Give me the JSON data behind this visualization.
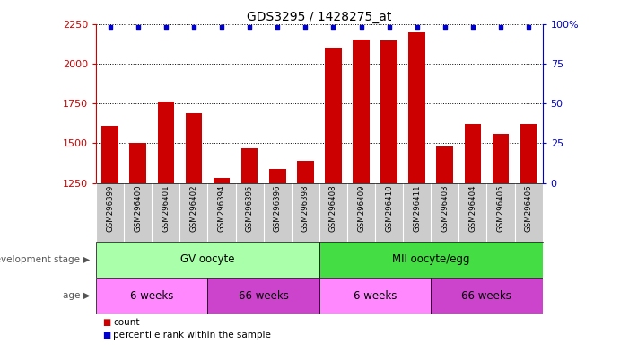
{
  "title": "GDS3295 / 1428275_at",
  "samples": [
    "GSM296399",
    "GSM296400",
    "GSM296401",
    "GSM296402",
    "GSM296394",
    "GSM296395",
    "GSM296396",
    "GSM296398",
    "GSM296408",
    "GSM296409",
    "GSM296410",
    "GSM296411",
    "GSM296403",
    "GSM296404",
    "GSM296405",
    "GSM296406"
  ],
  "counts": [
    1610,
    1500,
    1760,
    1690,
    1280,
    1470,
    1340,
    1390,
    2100,
    2155,
    2150,
    2200,
    1480,
    1620,
    1560,
    1620
  ],
  "bar_color": "#cc0000",
  "dot_color": "#0000cc",
  "ylim_left": [
    1250,
    2250
  ],
  "yticks_left": [
    1250,
    1500,
    1750,
    2000,
    2250
  ],
  "ylim_right": [
    0,
    100
  ],
  "yticks_right": [
    0,
    25,
    50,
    75,
    100
  ],
  "dev_stage_groups": [
    {
      "label": "GV oocyte",
      "start": 0,
      "end": 8,
      "color": "#aaffaa"
    },
    {
      "label": "MII oocyte/egg",
      "start": 8,
      "end": 16,
      "color": "#44dd44"
    }
  ],
  "age_groups": [
    {
      "label": "6 weeks",
      "start": 0,
      "end": 4,
      "color": "#ff88ff"
    },
    {
      "label": "66 weeks",
      "start": 4,
      "end": 8,
      "color": "#cc44cc"
    },
    {
      "label": "6 weeks",
      "start": 8,
      "end": 12,
      "color": "#ff88ff"
    },
    {
      "label": "66 weeks",
      "start": 12,
      "end": 16,
      "color": "#cc44cc"
    }
  ],
  "left_axis_color": "#cc0000",
  "right_axis_color": "#0000cc",
  "grey_band_color": "#cccccc",
  "label_dev": "development stage",
  "label_age": "age",
  "legend_items": [
    {
      "color": "#cc0000",
      "label": "count"
    },
    {
      "color": "#0000cc",
      "label": "percentile rank within the sample"
    }
  ]
}
